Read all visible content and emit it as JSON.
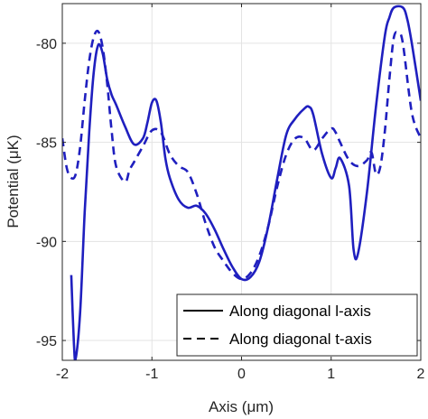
{
  "chart_data": {
    "type": "line",
    "xlabel": "Axis (μm)",
    "ylabel": "Potential (μK)",
    "xlim": [
      -2,
      2
    ],
    "ylim": [
      -96,
      -78
    ],
    "xticks": [
      "-2",
      "-1",
      "0",
      "1",
      "2"
    ],
    "yticks": [
      "-95",
      "-90",
      "-85",
      "-80"
    ],
    "xtick_values": [
      -2,
      -1,
      0,
      1,
      2
    ],
    "ytick_values": [
      -95,
      -90,
      -85,
      -80
    ],
    "grid": true,
    "legend_position": "bottom-right",
    "line_color": "#1f1fbf",
    "series": [
      {
        "name": "Along diagonal l-axis",
        "style": "solid",
        "x": [
          -1.9,
          -1.87,
          -1.85,
          -1.8,
          -1.75,
          -1.7,
          -1.65,
          -1.6,
          -1.55,
          -1.5,
          -1.45,
          -1.4,
          -1.3,
          -1.2,
          -1.1,
          -1.05,
          -1.0,
          -0.95,
          -0.9,
          -0.85,
          -0.8,
          -0.7,
          -0.6,
          -0.5,
          -0.4,
          -0.3,
          -0.2,
          -0.1,
          0.0,
          0.1,
          0.2,
          0.3,
          0.4,
          0.5,
          0.6,
          0.7,
          0.75,
          0.8,
          0.9,
          1.0,
          1.05,
          1.1,
          1.2,
          1.25,
          1.3,
          1.4,
          1.5,
          1.6,
          1.65,
          1.7,
          1.8,
          1.85,
          1.9,
          2.0
        ],
        "y": [
          -91.7,
          -95.2,
          -95.9,
          -93.5,
          -88.5,
          -84.5,
          -81.5,
          -80.1,
          -80.5,
          -81.8,
          -82.6,
          -83.1,
          -84.2,
          -85.1,
          -84.8,
          -84.0,
          -83.0,
          -82.9,
          -84.0,
          -85.8,
          -86.8,
          -87.9,
          -88.3,
          -88.2,
          -88.6,
          -89.4,
          -90.4,
          -91.3,
          -91.9,
          -91.8,
          -91.0,
          -89.2,
          -86.8,
          -84.6,
          -83.8,
          -83.3,
          -83.2,
          -83.6,
          -85.6,
          -86.8,
          -86.3,
          -85.8,
          -87.2,
          -90.4,
          -90.6,
          -87.5,
          -83.2,
          -79.6,
          -78.7,
          -78.2,
          -78.2,
          -78.8,
          -80.0,
          -82.9
        ]
      },
      {
        "name": "Along diagonal t-axis",
        "style": "dashed",
        "x": [
          -2.0,
          -1.95,
          -1.9,
          -1.85,
          -1.8,
          -1.75,
          -1.7,
          -1.65,
          -1.6,
          -1.55,
          -1.5,
          -1.45,
          -1.4,
          -1.3,
          -1.25,
          -1.2,
          -1.1,
          -1.0,
          -0.9,
          -0.8,
          -0.7,
          -0.6,
          -0.5,
          -0.4,
          -0.3,
          -0.2,
          -0.1,
          0.0,
          0.1,
          0.2,
          0.3,
          0.4,
          0.5,
          0.6,
          0.7,
          0.8,
          0.9,
          1.0,
          1.05,
          1.1,
          1.2,
          1.3,
          1.4,
          1.45,
          1.5,
          1.55,
          1.6,
          1.65,
          1.7,
          1.75,
          1.8,
          1.9,
          2.0
        ],
        "y": [
          -84.8,
          -86.3,
          -86.8,
          -86.6,
          -85.2,
          -82.9,
          -80.9,
          -79.7,
          -79.4,
          -80.2,
          -82.0,
          -84.4,
          -86.2,
          -87.0,
          -86.4,
          -86.0,
          -85.2,
          -84.4,
          -84.5,
          -85.6,
          -86.2,
          -86.5,
          -87.6,
          -89.1,
          -90.3,
          -91.0,
          -91.6,
          -91.9,
          -91.6,
          -90.7,
          -89.2,
          -87.2,
          -85.6,
          -84.8,
          -84.8,
          -85.4,
          -84.8,
          -84.3,
          -84.5,
          -85.0,
          -85.9,
          -86.2,
          -85.9,
          -85.5,
          -86.6,
          -86.2,
          -84.4,
          -81.8,
          -79.7,
          -79.5,
          -80.0,
          -83.5,
          -84.8
        ]
      }
    ]
  }
}
